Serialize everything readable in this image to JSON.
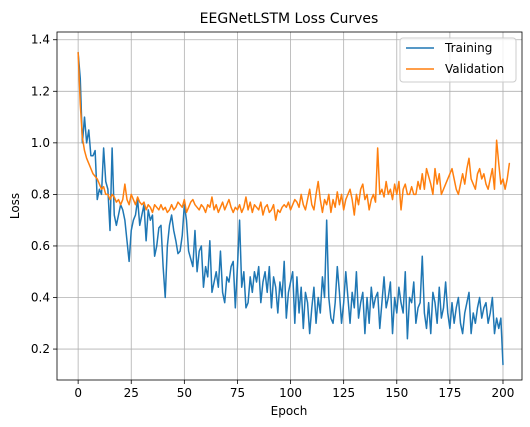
{
  "chart_data": {
    "type": "line",
    "title": "EEGNetLSTM Loss Curves",
    "xlabel": "Epoch",
    "ylabel": "Loss",
    "xlim": [
      -9.95,
      208.95
    ],
    "ylim": [
      0.08,
      1.43
    ],
    "xticks": [
      0,
      25,
      50,
      75,
      100,
      125,
      150,
      175,
      200
    ],
    "yticks": [
      0.2,
      0.4,
      0.6,
      0.8,
      1.0,
      1.2,
      1.4
    ],
    "ytick_labels": [
      "0.2",
      "0.4",
      "0.6",
      "0.8",
      "1.0",
      "1.2",
      "1.4"
    ],
    "grid": true,
    "legend_position": "top-right",
    "series": [
      {
        "name": "Training",
        "color": "#1f77b4",
        "values": [
          1.35,
          1.25,
          1.0,
          1.1,
          1.0,
          1.05,
          0.95,
          0.95,
          0.97,
          0.78,
          0.82,
          0.8,
          0.98,
          0.85,
          0.82,
          0.66,
          0.98,
          0.72,
          0.68,
          0.72,
          0.76,
          0.74,
          0.7,
          0.62,
          0.54,
          0.66,
          0.7,
          0.72,
          0.78,
          0.68,
          0.72,
          0.76,
          0.62,
          0.74,
          0.7,
          0.72,
          0.56,
          0.6,
          0.67,
          0.68,
          0.52,
          0.4,
          0.6,
          0.68,
          0.72,
          0.66,
          0.62,
          0.57,
          0.58,
          0.64,
          0.76,
          0.7,
          0.58,
          0.55,
          0.52,
          0.66,
          0.5,
          0.58,
          0.6,
          0.44,
          0.52,
          0.48,
          0.62,
          0.42,
          0.46,
          0.5,
          0.44,
          0.58,
          0.42,
          0.38,
          0.48,
          0.46,
          0.52,
          0.54,
          0.36,
          0.52,
          0.7,
          0.44,
          0.5,
          0.36,
          0.38,
          0.48,
          0.42,
          0.5,
          0.46,
          0.52,
          0.38,
          0.46,
          0.5,
          0.42,
          0.52,
          0.36,
          0.48,
          0.44,
          0.34,
          0.46,
          0.4,
          0.54,
          0.32,
          0.42,
          0.46,
          0.5,
          0.3,
          0.48,
          0.34,
          0.44,
          0.28,
          0.42,
          0.38,
          0.26,
          0.36,
          0.44,
          0.3,
          0.4,
          0.34,
          0.48,
          0.4,
          0.7,
          0.4,
          0.32,
          0.3,
          0.38,
          0.52,
          0.42,
          0.3,
          0.38,
          0.5,
          0.4,
          0.3,
          0.42,
          0.36,
          0.5,
          0.32,
          0.38,
          0.42,
          0.26,
          0.4,
          0.3,
          0.44,
          0.36,
          0.4,
          0.42,
          0.28,
          0.38,
          0.48,
          0.36,
          0.4,
          0.46,
          0.26,
          0.4,
          0.34,
          0.44,
          0.38,
          0.34,
          0.5,
          0.24,
          0.4,
          0.38,
          0.46,
          0.3,
          0.36,
          0.38,
          0.56,
          0.34,
          0.28,
          0.38,
          0.26,
          0.42,
          0.38,
          0.3,
          0.44,
          0.32,
          0.36,
          0.46,
          0.34,
          0.28,
          0.38,
          0.3,
          0.36,
          0.4,
          0.3,
          0.26,
          0.34,
          0.38,
          0.42,
          0.26,
          0.34,
          0.3,
          0.36,
          0.4,
          0.32,
          0.36,
          0.38,
          0.3,
          0.34,
          0.4,
          0.26,
          0.32,
          0.28,
          0.32,
          0.14
        ]
      },
      {
        "name": "Validation",
        "color": "#ff7f0e",
        "values": [
          1.35,
          1.15,
          1.02,
          0.97,
          0.94,
          0.92,
          0.9,
          0.88,
          0.87,
          0.86,
          0.84,
          0.82,
          0.83,
          0.8,
          0.8,
          0.78,
          0.8,
          0.79,
          0.77,
          0.78,
          0.76,
          0.78,
          0.84,
          0.78,
          0.76,
          0.8,
          0.78,
          0.76,
          0.79,
          0.77,
          0.76,
          0.77,
          0.74,
          0.76,
          0.75,
          0.73,
          0.76,
          0.75,
          0.74,
          0.76,
          0.74,
          0.75,
          0.73,
          0.74,
          0.76,
          0.74,
          0.75,
          0.77,
          0.76,
          0.75,
          0.78,
          0.73,
          0.75,
          0.77,
          0.78,
          0.76,
          0.75,
          0.74,
          0.76,
          0.75,
          0.73,
          0.76,
          0.75,
          0.79,
          0.74,
          0.76,
          0.73,
          0.75,
          0.77,
          0.74,
          0.76,
          0.78,
          0.75,
          0.73,
          0.75,
          0.74,
          0.76,
          0.73,
          0.75,
          0.79,
          0.74,
          0.77,
          0.73,
          0.76,
          0.75,
          0.74,
          0.77,
          0.72,
          0.75,
          0.76,
          0.73,
          0.74,
          0.76,
          0.7,
          0.74,
          0.73,
          0.75,
          0.76,
          0.75,
          0.77,
          0.74,
          0.76,
          0.78,
          0.77,
          0.75,
          0.8,
          0.76,
          0.74,
          0.78,
          0.82,
          0.76,
          0.74,
          0.8,
          0.85,
          0.78,
          0.73,
          0.78,
          0.76,
          0.8,
          0.73,
          0.78,
          0.75,
          0.81,
          0.76,
          0.8,
          0.74,
          0.78,
          0.8,
          0.82,
          0.78,
          0.72,
          0.8,
          0.76,
          0.82,
          0.84,
          0.78,
          0.8,
          0.74,
          0.78,
          0.8,
          0.77,
          0.98,
          0.8,
          0.82,
          0.79,
          0.85,
          0.8,
          0.82,
          0.78,
          0.84,
          0.8,
          0.85,
          0.74,
          0.82,
          0.84,
          0.8,
          0.8,
          0.83,
          0.8,
          0.8,
          0.85,
          0.82,
          0.88,
          0.82,
          0.9,
          0.87,
          0.84,
          0.8,
          0.9,
          0.84,
          0.88,
          0.8,
          0.82,
          0.84,
          0.86,
          0.88,
          0.9,
          0.86,
          0.82,
          0.8,
          0.84,
          0.88,
          0.84,
          0.9,
          0.94,
          0.86,
          0.84,
          0.82,
          0.88,
          0.9,
          0.86,
          0.88,
          0.84,
          0.82,
          0.86,
          0.9,
          0.82,
          1.01,
          0.92,
          0.84,
          0.86,
          0.82,
          0.86,
          0.92
        ]
      }
    ]
  }
}
